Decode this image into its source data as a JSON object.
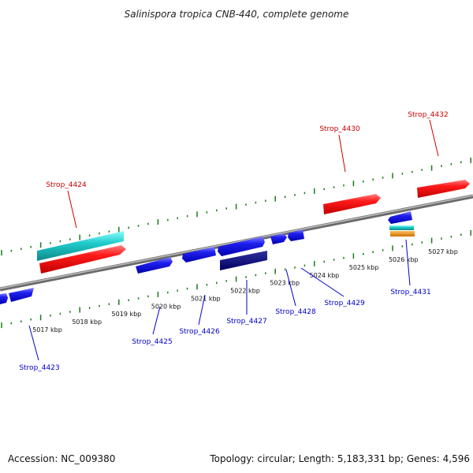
{
  "title": "Salinispora tropica CNB-440, complete genome",
  "footer": {
    "accession": "Accession: NC_009380",
    "topology": "Topology: circular; Length: 5,183,331 bp; Genes: 4,596"
  },
  "kbp_labels": [
    "5017 kbp",
    "5018 kbp",
    "5019 kbp",
    "5020 kbp",
    "5021 kbp",
    "5022 kbp",
    "5023 kbp",
    "5024 kbp",
    "5025 kbp",
    "5026 kbp",
    "5027 kbp"
  ],
  "gene_labels": {
    "top": [
      "Strop_4424",
      "Strop_4430",
      "Strop_4432"
    ],
    "bottom": [
      "Strop_4423",
      "Strop_4425",
      "Strop_4426",
      "Strop_4427",
      "Strop_4428",
      "Strop_4429",
      "Strop_4431"
    ]
  },
  "colors": {
    "red": "#ee1111",
    "blue": "#1a1aee",
    "navy": "#0a0a80",
    "cyan": "#22cccc",
    "orange": "#f09010",
    "tick_green": "#1a7a1a",
    "backbone": "#888888"
  }
}
